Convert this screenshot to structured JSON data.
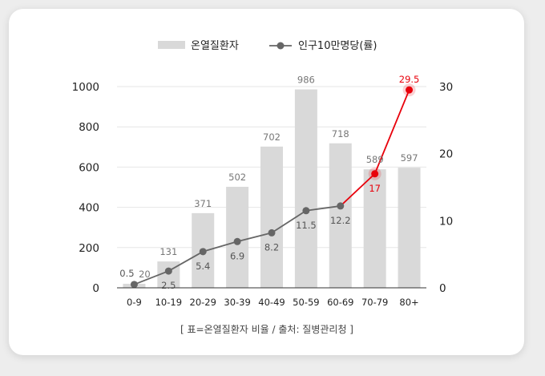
{
  "chart_data": {
    "type": "bar",
    "categories": [
      "0-9",
      "10-19",
      "20-29",
      "30-39",
      "40-49",
      "50-59",
      "60-69",
      "70-79",
      "80+"
    ],
    "series": [
      {
        "name": "온열질환자",
        "type": "bar",
        "axis": "left",
        "values": [
          20,
          131,
          371,
          502,
          702,
          986,
          718,
          589,
          597
        ],
        "color": "#d9d9d9"
      },
      {
        "name": "인구10만명당(률)",
        "type": "line",
        "axis": "right",
        "values": [
          0.5,
          2.5,
          5.4,
          6.9,
          8.2,
          11.5,
          12.2,
          17,
          29.5
        ],
        "color": "#666666",
        "highlight_color": "#e8000b",
        "highlight_from_index": 6
      }
    ],
    "left_axis": {
      "ticks": [
        "0",
        "200",
        "400",
        "600",
        "800",
        "1000"
      ],
      "range": [
        0,
        1000
      ]
    },
    "right_axis": {
      "ticks": [
        "0",
        "10",
        "20",
        "30"
      ],
      "range": [
        0,
        30
      ]
    },
    "grid": true,
    "legend": {
      "position": "top-center",
      "labels": [
        "온열질환자",
        "인구10만명당(률)"
      ]
    },
    "note": "[ 표=온열질환자 비율 / 출처: 질병관리청 ]"
  }
}
